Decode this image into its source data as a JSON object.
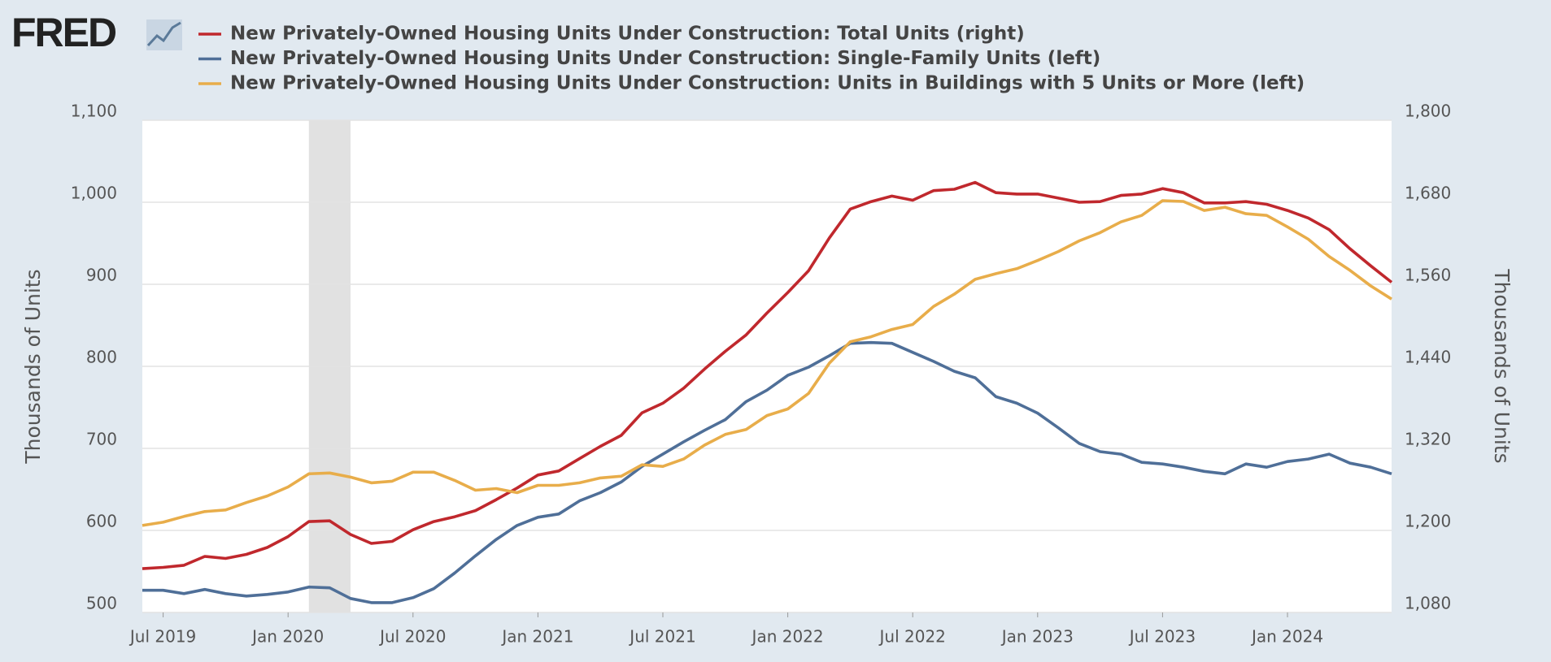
{
  "logo": "FRED",
  "chart_data": {
    "type": "line",
    "y_label": "Thousands of Units",
    "y2_label": "Thousands of Units",
    "x": [
      "2019-06",
      "2019-07",
      "2019-08",
      "2019-09",
      "2019-10",
      "2019-11",
      "2019-12",
      "2020-01",
      "2020-02",
      "2020-03",
      "2020-04",
      "2020-05",
      "2020-06",
      "2020-07",
      "2020-08",
      "2020-09",
      "2020-10",
      "2020-11",
      "2020-12",
      "2021-01",
      "2021-02",
      "2021-03",
      "2021-04",
      "2021-05",
      "2021-06",
      "2021-07",
      "2021-08",
      "2021-09",
      "2021-10",
      "2021-11",
      "2021-12",
      "2022-01",
      "2022-02",
      "2022-03",
      "2022-04",
      "2022-05",
      "2022-06",
      "2022-07",
      "2022-08",
      "2022-09",
      "2022-10",
      "2022-11",
      "2022-12",
      "2023-01",
      "2023-02",
      "2023-03",
      "2023-04",
      "2023-05",
      "2023-06",
      "2023-07",
      "2023-08",
      "2023-09",
      "2023-10",
      "2023-11",
      "2023-12",
      "2024-01",
      "2024-02",
      "2024-03",
      "2024-04",
      "2024-05",
      "2024-06"
    ],
    "xlim": [
      "2019-06",
      "2024-06"
    ],
    "xticks": [
      {
        "value": "2019-07",
        "label": "Jul 2019"
      },
      {
        "value": "2020-01",
        "label": "Jan 2020"
      },
      {
        "value": "2020-07",
        "label": "Jul 2020"
      },
      {
        "value": "2021-01",
        "label": "Jan 2021"
      },
      {
        "value": "2021-07",
        "label": "Jul 2021"
      },
      {
        "value": "2022-01",
        "label": "Jan 2022"
      },
      {
        "value": "2022-07",
        "label": "Jul 2022"
      },
      {
        "value": "2023-01",
        "label": "Jan 2023"
      },
      {
        "value": "2023-07",
        "label": "Jul 2023"
      },
      {
        "value": "2024-01",
        "label": "Jan 2024"
      }
    ],
    "ylim": [
      500,
      1100
    ],
    "yticks": [
      500,
      600,
      700,
      800,
      900,
      {
        "value": 1000,
        "label": "1,000"
      },
      {
        "value": 1100,
        "label": "1,100"
      }
    ],
    "y2lim": [
      1080,
      1800
    ],
    "y2ticks": [
      {
        "value": 1080,
        "label": "1,080"
      },
      {
        "value": 1200,
        "label": "1,200"
      },
      {
        "value": 1320,
        "label": "1,320"
      },
      {
        "value": 1440,
        "label": "1,440"
      },
      {
        "value": 1560,
        "label": "1,560"
      },
      {
        "value": 1680,
        "label": "1,680"
      },
      {
        "value": 1800,
        "label": "1,800"
      }
    ],
    "grid": true,
    "shaded_periods": [
      [
        "2020-02",
        "2020-04"
      ]
    ],
    "series": [
      {
        "name": "New Privately-Owned Housing Units Under Construction: Total Units (right)",
        "color": "#c0282d",
        "axis": "y2",
        "values": [
          1144,
          1146,
          1149,
          1162,
          1159,
          1165,
          1175,
          1191,
          1213,
          1214,
          1194,
          1181,
          1184,
          1201,
          1213,
          1220,
          1229,
          1245,
          1262,
          1281,
          1287,
          1305,
          1323,
          1339,
          1372,
          1386,
          1408,
          1436,
          1462,
          1486,
          1518,
          1548,
          1580,
          1628,
          1670,
          1681,
          1689,
          1683,
          1697,
          1699,
          1709,
          1694,
          1692,
          1692,
          1686,
          1680,
          1681,
          1690,
          1692,
          1700,
          1694,
          1679,
          1679,
          1681,
          1677,
          1668,
          1657,
          1640,
          1612,
          1587,
          1563
        ]
      },
      {
        "name": "New Privately-Owned Housing Units Under Construction: Single-Family Units (left)",
        "color": "#4f6f98",
        "values": [
          527,
          527,
          523,
          528,
          523,
          520,
          522,
          525,
          531,
          530,
          517,
          512,
          512,
          518,
          529,
          548,
          569,
          589,
          606,
          616,
          620,
          636,
          646,
          659,
          678,
          693,
          708,
          722,
          735,
          757,
          771,
          789,
          799,
          813,
          828,
          829,
          828,
          817,
          806,
          794,
          786,
          763,
          755,
          743,
          725,
          706,
          696,
          693,
          683,
          681,
          677,
          672,
          669,
          681,
          677,
          684,
          687,
          693,
          682,
          677,
          669
        ]
      },
      {
        "name": "New Privately-Owned Housing Units Under Construction: Units in Buildings with 5 Units or More (left)",
        "color": "#e8ad4a",
        "values": [
          606,
          610,
          617,
          623,
          625,
          634,
          642,
          653,
          669,
          670,
          665,
          658,
          660,
          671,
          671,
          661,
          649,
          651,
          646,
          655,
          655,
          658,
          664,
          666,
          680,
          678,
          687,
          704,
          717,
          723,
          740,
          748,
          767,
          804,
          830,
          836,
          845,
          851,
          873,
          888,
          906,
          913,
          919,
          929,
          940,
          953,
          963,
          976,
          984,
          1002,
          1001,
          990,
          994,
          986,
          984,
          970,
          955,
          934,
          917,
          898,
          882
        ]
      }
    ]
  }
}
